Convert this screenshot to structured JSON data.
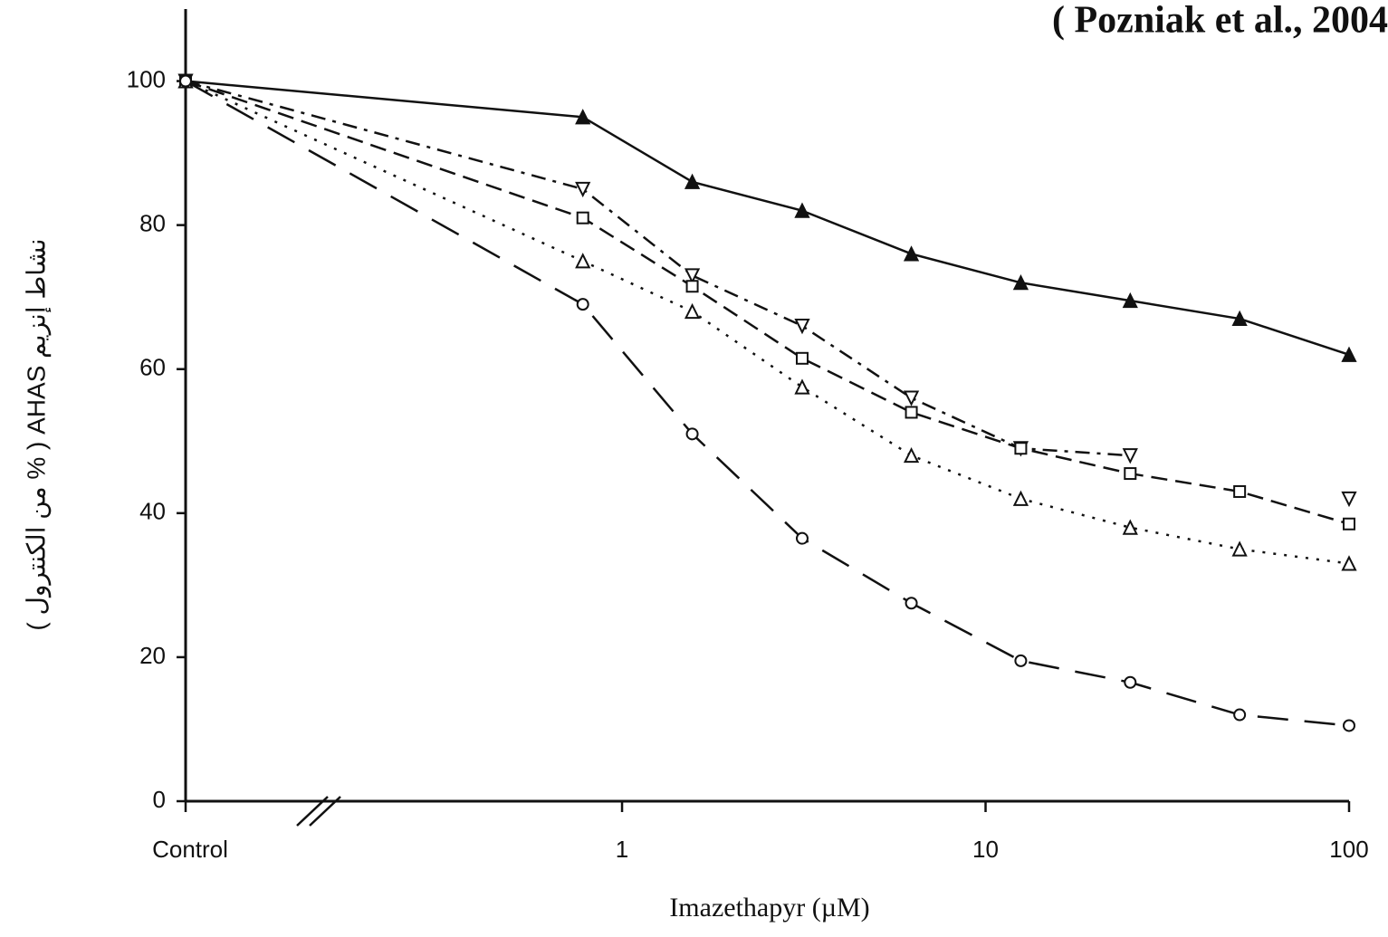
{
  "chart_data": {
    "type": "line",
    "title": "( Pozniak et al., 2004",
    "xlabel": "Imazethapyr (µM)",
    "ylabel": "نشاط إنزيم AHAS ( % من الكنترول )",
    "x": [
      0.063,
      0.78,
      1.56,
      3.13,
      6.25,
      12.5,
      25,
      50,
      100
    ],
    "xscale": "log",
    "xlim": [
      0.063,
      100
    ],
    "xticks": [
      {
        "value": 0.063,
        "label": "Control"
      },
      1,
      10,
      100
    ],
    "ylim": [
      0,
      110
    ],
    "yticks": [
      0,
      20,
      40,
      60,
      80,
      100
    ],
    "grid": false,
    "series": [
      {
        "color": "#111",
        "marker": "filled-triangle",
        "dash": "solid",
        "values": [
          100,
          95,
          86,
          82,
          76,
          72,
          69.5,
          67,
          62
        ]
      },
      {
        "color": "#111",
        "marker": "inverted-triangle",
        "dash": "dash-dot",
        "values": [
          100,
          85,
          73,
          66,
          56,
          49,
          48,
          null,
          42
        ]
      },
      {
        "color": "#111",
        "marker": "square",
        "dash": "dashed",
        "values": [
          100,
          81,
          71.5,
          61.5,
          54,
          49,
          45.5,
          43,
          38.5
        ]
      },
      {
        "color": "#111",
        "marker": "triangle",
        "dash": "dotted",
        "values": [
          100,
          75,
          68,
          57.5,
          48,
          42,
          38,
          35,
          33
        ]
      },
      {
        "color": "#111",
        "marker": "circle",
        "dash": "long-dash",
        "values": [
          100,
          69,
          51,
          36.5,
          27.5,
          19.5,
          16.5,
          12,
          10.5
        ]
      }
    ]
  }
}
